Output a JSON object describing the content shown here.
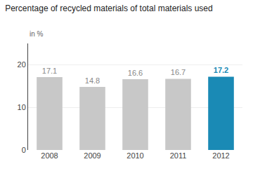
{
  "chart_data": {
    "type": "bar",
    "title": "Percentage of recycled materials of total materials used",
    "subtitle": "in %",
    "categories": [
      "2008",
      "2009",
      "2010",
      "2011",
      "2012"
    ],
    "values": [
      17.1,
      14.8,
      16.6,
      16.7,
      17.2
    ],
    "colors": [
      "#c8c8c8",
      "#c8c8c8",
      "#c8c8c8",
      "#c8c8c8",
      "#1a8ab5"
    ],
    "ylim": [
      0,
      25
    ],
    "yticks": [
      0,
      10,
      20
    ],
    "grid": true,
    "data_labels": true
  }
}
